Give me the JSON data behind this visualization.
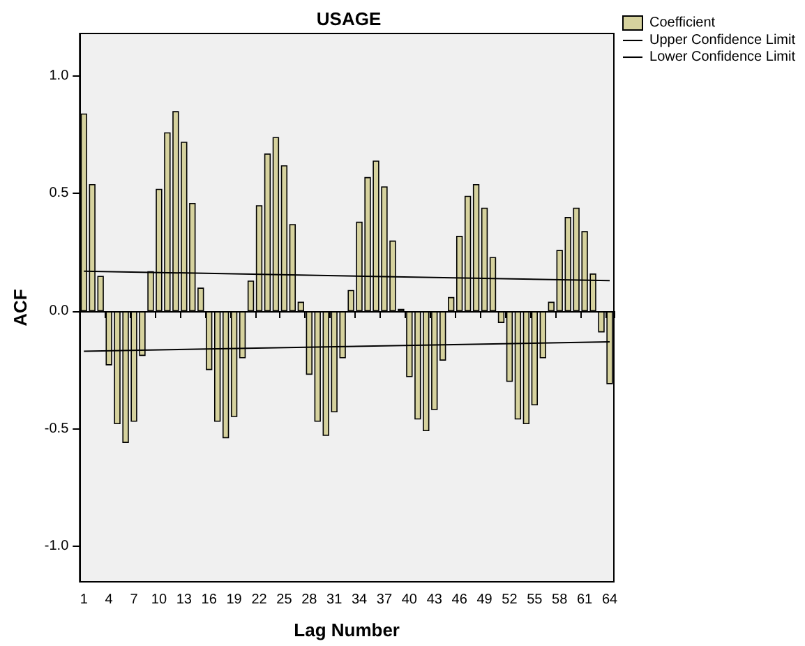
{
  "chart_data": {
    "type": "bar",
    "title": "USAGE",
    "xlabel": "Lag Number",
    "ylabel": "ACF",
    "categories": [
      "1",
      null,
      null,
      "4",
      null,
      null,
      "7",
      null,
      null,
      "10",
      null,
      null,
      "13",
      null,
      null,
      "16",
      null,
      null,
      "19",
      null,
      null,
      "22",
      null,
      null,
      "25",
      null,
      null,
      "28",
      null,
      null,
      "31",
      null,
      null,
      "34",
      null,
      null,
      "37",
      null,
      null,
      "40",
      null,
      null,
      "43",
      null,
      null,
      "46",
      null,
      null,
      "49",
      null,
      null,
      "52",
      null,
      null,
      "55",
      null,
      null,
      "58",
      null,
      null,
      "61",
      null,
      null,
      "64"
    ],
    "series": [
      {
        "name": "Coefficient",
        "color": "#d6d29e",
        "values": [
          0.84,
          0.54,
          0.15,
          -0.23,
          -0.48,
          -0.56,
          -0.47,
          -0.19,
          0.17,
          0.52,
          0.76,
          0.85,
          0.72,
          0.46,
          0.1,
          -0.25,
          -0.47,
          -0.54,
          -0.45,
          -0.2,
          0.13,
          0.45,
          0.67,
          0.74,
          0.62,
          0.37,
          0.04,
          -0.27,
          -0.47,
          -0.53,
          -0.43,
          -0.2,
          0.09,
          0.38,
          0.57,
          0.64,
          0.53,
          0.3,
          0.01,
          -0.28,
          -0.46,
          -0.51,
          -0.42,
          -0.21,
          0.06,
          0.32,
          0.49,
          0.54,
          0.44,
          0.23,
          -0.05,
          -0.3,
          -0.46,
          -0.48,
          -0.4,
          -0.2,
          0.04,
          0.26,
          0.4,
          0.44,
          0.34,
          0.16,
          -0.09,
          -0.31
        ]
      },
      {
        "name": "Upper Confidence Limit",
        "type": "line",
        "color": "#000000",
        "values": [
          0.17,
          null,
          null,
          null,
          null,
          null,
          null,
          null,
          null,
          null,
          null,
          null,
          null,
          null,
          null,
          null,
          null,
          null,
          null,
          null,
          null,
          null,
          null,
          null,
          null,
          null,
          null,
          null,
          null,
          null,
          null,
          null,
          null,
          null,
          null,
          null,
          null,
          null,
          null,
          null,
          null,
          null,
          null,
          null,
          null,
          null,
          null,
          null,
          null,
          null,
          null,
          null,
          null,
          null,
          null,
          null,
          null,
          null,
          null,
          null,
          null,
          null,
          null,
          0.13
        ]
      },
      {
        "name": "Lower Confidence Limit",
        "type": "line",
        "color": "#000000",
        "values": [
          -0.17,
          null,
          null,
          null,
          null,
          null,
          null,
          null,
          null,
          null,
          null,
          null,
          null,
          null,
          null,
          null,
          null,
          null,
          null,
          null,
          null,
          null,
          null,
          null,
          null,
          null,
          null,
          null,
          null,
          null,
          null,
          null,
          null,
          null,
          null,
          null,
          null,
          null,
          null,
          null,
          null,
          null,
          null,
          null,
          null,
          null,
          null,
          null,
          null,
          null,
          null,
          null,
          null,
          null,
          null,
          null,
          null,
          null,
          null,
          null,
          null,
          null,
          null,
          -0.13
        ]
      }
    ],
    "ylim": [
      -1.15,
      1.18
    ],
    "yticks": [
      {
        "value": -1,
        "label": "-1.0"
      },
      {
        "value": -0.5,
        "label": "-0.5"
      },
      {
        "value": 0,
        "label": "0.0"
      },
      {
        "value": 0.5,
        "label": "0.5"
      },
      {
        "value": 1,
        "label": "1.0"
      }
    ],
    "ref_lines": [
      {
        "axis": "y",
        "value": 0,
        "color": "#000000"
      }
    ],
    "legend": "top right",
    "grid": false,
    "marker": "none"
  }
}
